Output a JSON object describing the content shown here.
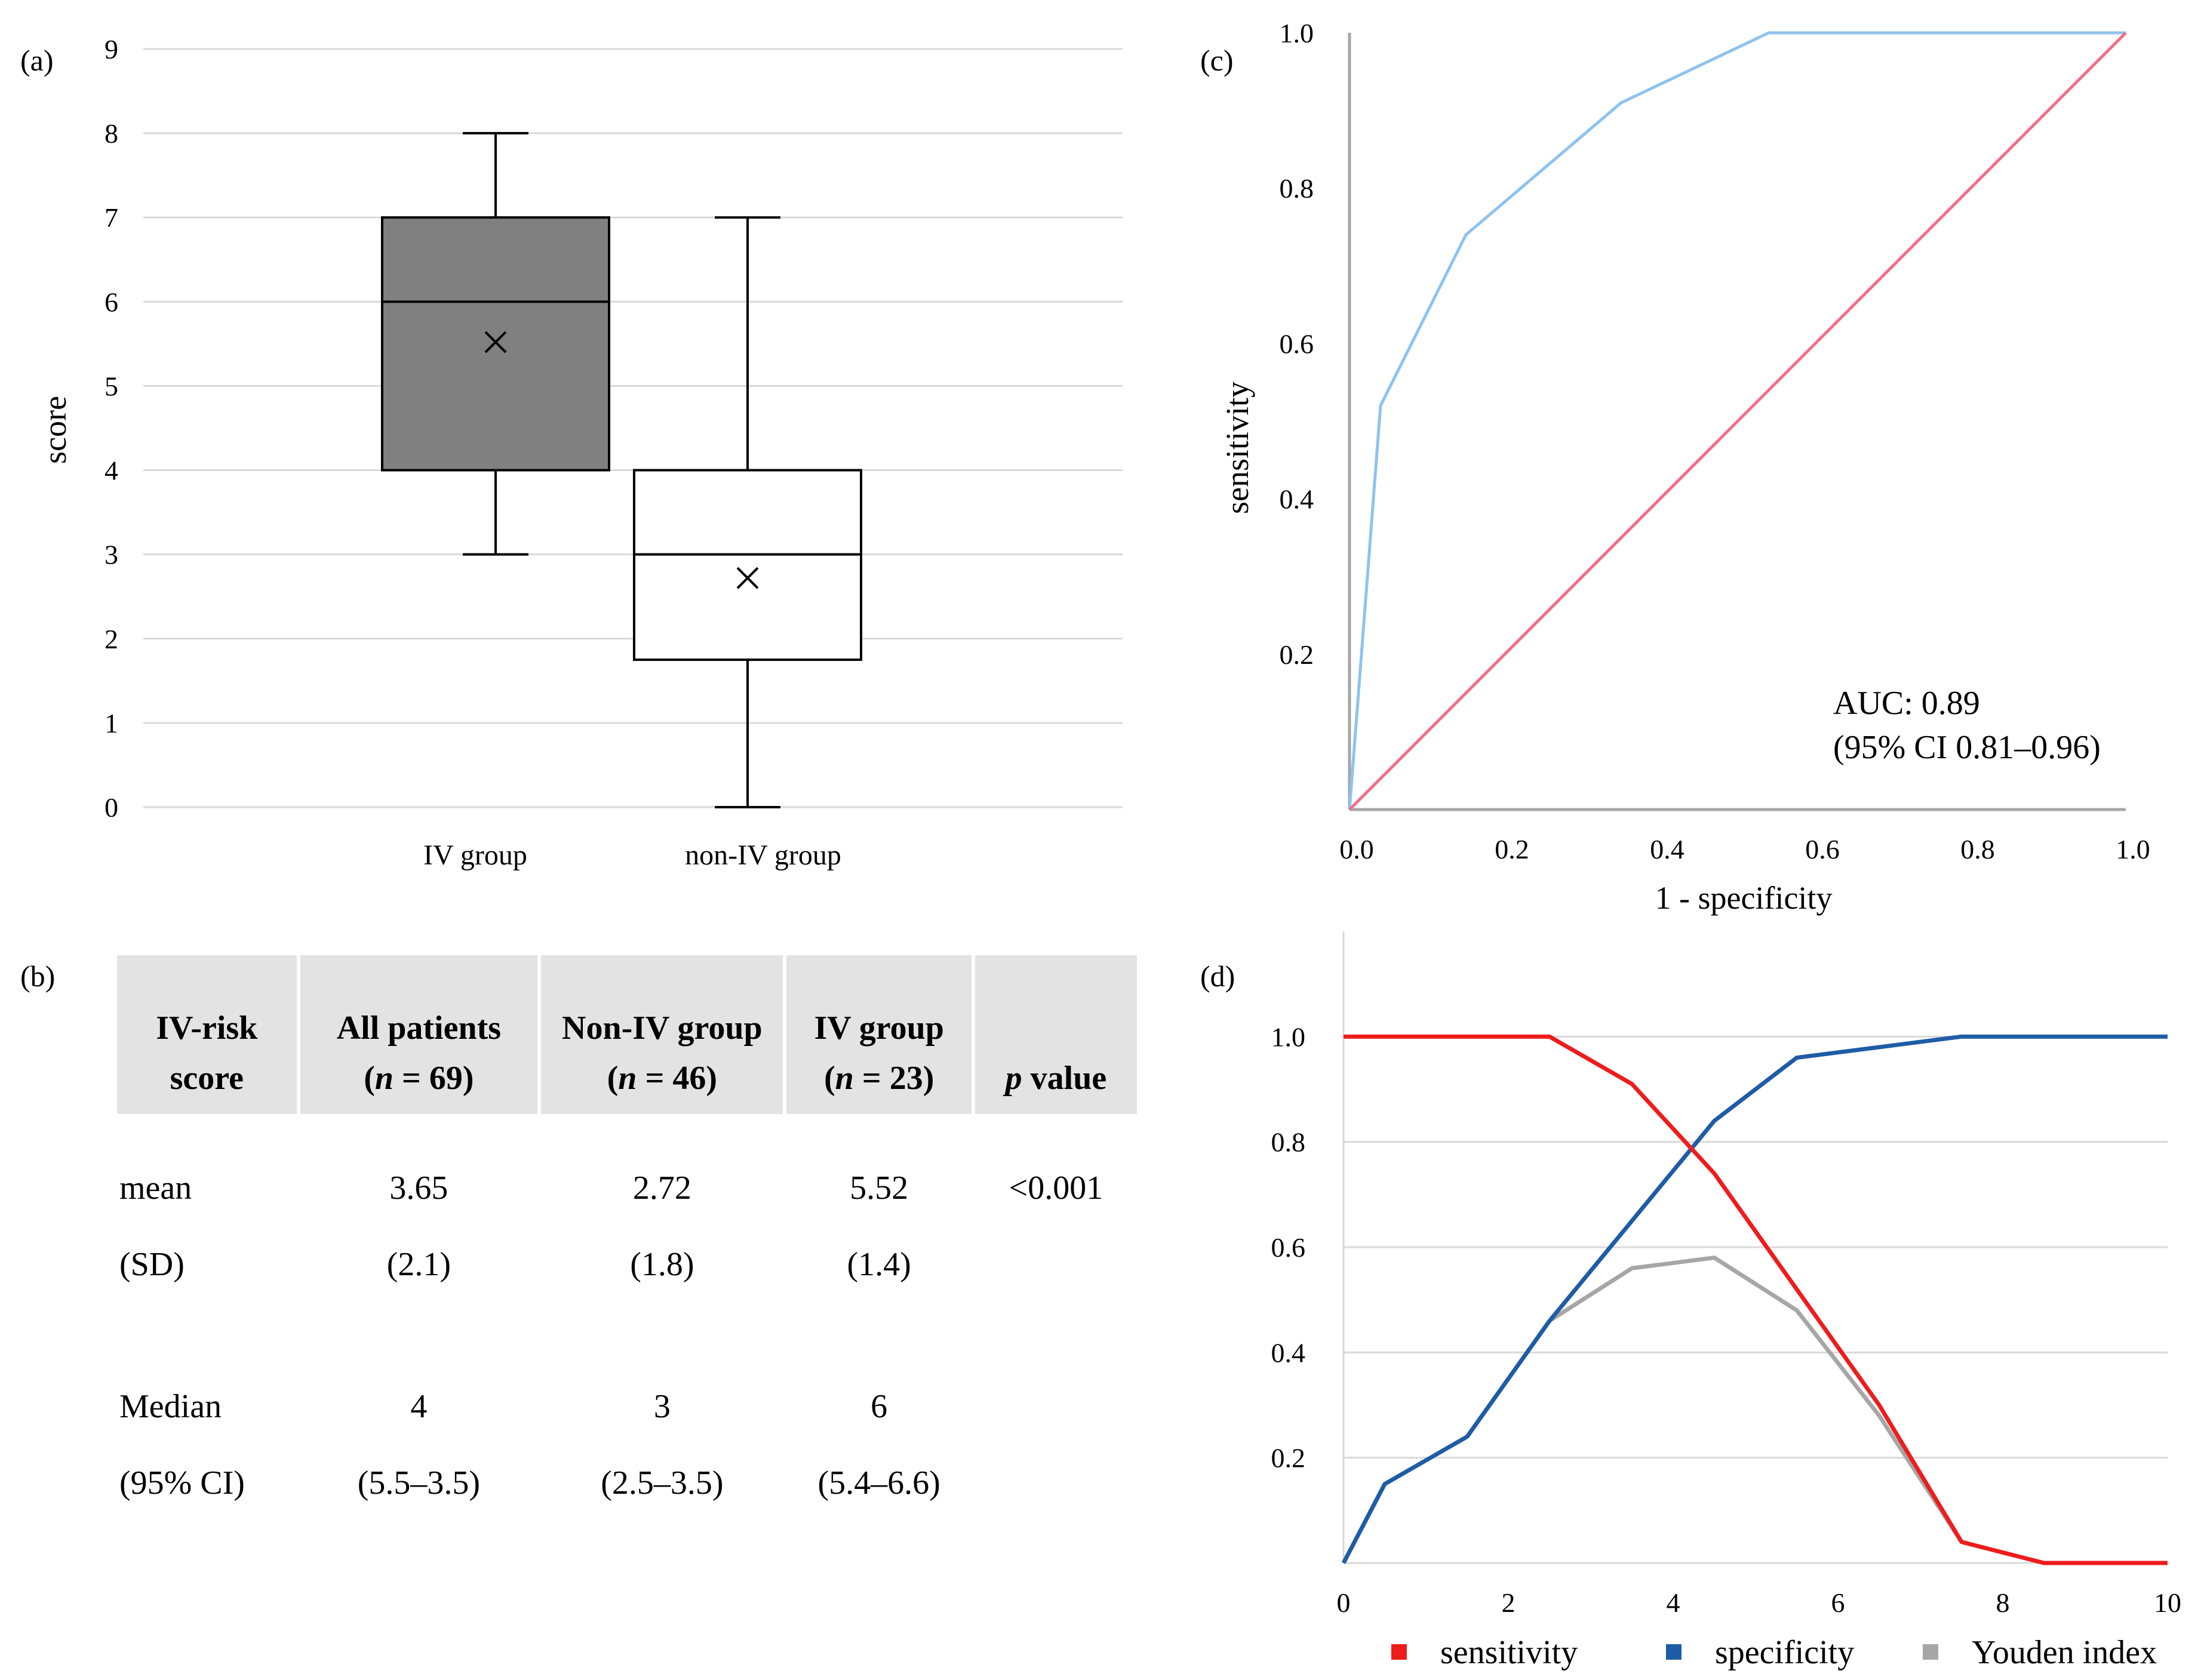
{
  "panels": {
    "a": "(a)",
    "b": "(b)",
    "c": "(c)",
    "d": "(d)"
  },
  "chart_data": [
    {
      "id": "a",
      "type": "box",
      "ylabel": "score",
      "ylim": [
        0,
        9
      ],
      "yticks": [
        "0",
        "1",
        "2",
        "3",
        "4",
        "5",
        "6",
        "7",
        "8",
        "9"
      ],
      "grid": true,
      "categories": [
        "IV group",
        "non-IV group"
      ],
      "boxes": [
        {
          "name": "IV group",
          "min": 3,
          "q1": 4,
          "median": 6,
          "q3": 7,
          "max": 8,
          "mean": 5.52,
          "fill": "#808080"
        },
        {
          "name": "non-IV group",
          "min": 0,
          "q1": 1.75,
          "median": 3,
          "q3": 4,
          "max": 7,
          "mean": 2.72,
          "fill": "#ffffff"
        }
      ]
    },
    {
      "id": "c",
      "type": "line",
      "xlabel": "1 - specificity",
      "ylabel": "sensitivity",
      "xlim": [
        0,
        1
      ],
      "ylim": [
        0,
        1
      ],
      "xticks": [
        "0.0",
        "0.2",
        "0.4",
        "0.6",
        "0.8",
        "1.0"
      ],
      "yticks": [
        "0.2",
        "0.4",
        "0.6",
        "0.8",
        "1.0"
      ],
      "series": [
        {
          "color": "#8ec3ee",
          "x": [
            0,
            0.04,
            0.15,
            0.35,
            0.54,
            1.0
          ],
          "y": [
            0,
            0.52,
            0.74,
            0.91,
            1.0,
            1.0
          ]
        },
        {
          "color": "#f06e8a",
          "x": [
            0,
            1
          ],
          "y": [
            0,
            1
          ]
        }
      ],
      "annotation": [
        "AUC: 0.89",
        "(95% CI 0.81–0.96)"
      ]
    },
    {
      "id": "d",
      "type": "line",
      "xlim": [
        0,
        10
      ],
      "ylim": [
        0,
        1.2
      ],
      "xticks": [
        "0",
        "2",
        "4",
        "6",
        "8",
        "10"
      ],
      "yticks": [
        "0.2",
        "0.4",
        "0.6",
        "0.8",
        "1.0"
      ],
      "grid": true,
      "legend_position": "bottom",
      "series": [
        {
          "name": "sensitivity",
          "color": "#ee1c1c",
          "x": [
            0,
            0.5,
            1.5,
            2.5,
            3.5,
            4.5,
            5.5,
            6.5,
            7.5,
            8.5,
            9.5,
            10
          ],
          "y": [
            1.0,
            1.0,
            1.0,
            1.0,
            0.91,
            0.74,
            0.52,
            0.3,
            0.04,
            0.0,
            0.0,
            0.0
          ]
        },
        {
          "name": "specificity",
          "color": "#1f5ca6",
          "x": [
            0,
            0.5,
            1.5,
            2.5,
            3.5,
            4.5,
            5.5,
            6.5,
            7.5,
            8.5,
            9.5,
            10
          ],
          "y": [
            0.0,
            0.15,
            0.24,
            0.46,
            0.65,
            0.84,
            0.96,
            0.98,
            1.0,
            1.0,
            1.0,
            1.0
          ]
        },
        {
          "name": "Youden index",
          "color": "#a6a6a6",
          "x": [
            0,
            0.5,
            1.5,
            2.5,
            3.5,
            4.5,
            5.5,
            6.5,
            7.5
          ],
          "y": [
            0.0,
            0.15,
            0.24,
            0.46,
            0.56,
            0.58,
            0.48,
            0.28,
            0.04
          ]
        }
      ]
    },
    {
      "id": "b",
      "type": "table",
      "columns": [
        {
          "line1": "IV-risk",
          "line2": "score"
        },
        {
          "line1": "All  patients",
          "line2_italic": "n",
          "line2_rest": " = 69)",
          "line2_open": "("
        },
        {
          "line1": "Non-IV group",
          "line2_italic": "n",
          "line2_rest": " = 46)",
          "line2_open": "("
        },
        {
          "line1": "IV group",
          "line2_italic": "n",
          "line2_rest": " = 23)",
          "line2_open": "("
        },
        {
          "line1": "",
          "line2_italic": "p",
          "line2_rest": " value",
          "line2_open": ""
        }
      ],
      "rows": [
        [
          "mean",
          "3.65",
          "2.72",
          "5.52",
          "<0.001"
        ],
        [
          "(SD)",
          "(2.1)",
          "(1.8)",
          "(1.4)",
          ""
        ],
        [
          "Median",
          "4",
          "3",
          "6",
          ""
        ],
        [
          "(95% CI)",
          "(5.5–3.5)",
          "(2.5–3.5)",
          "(5.4–6.6)",
          ""
        ]
      ]
    }
  ]
}
